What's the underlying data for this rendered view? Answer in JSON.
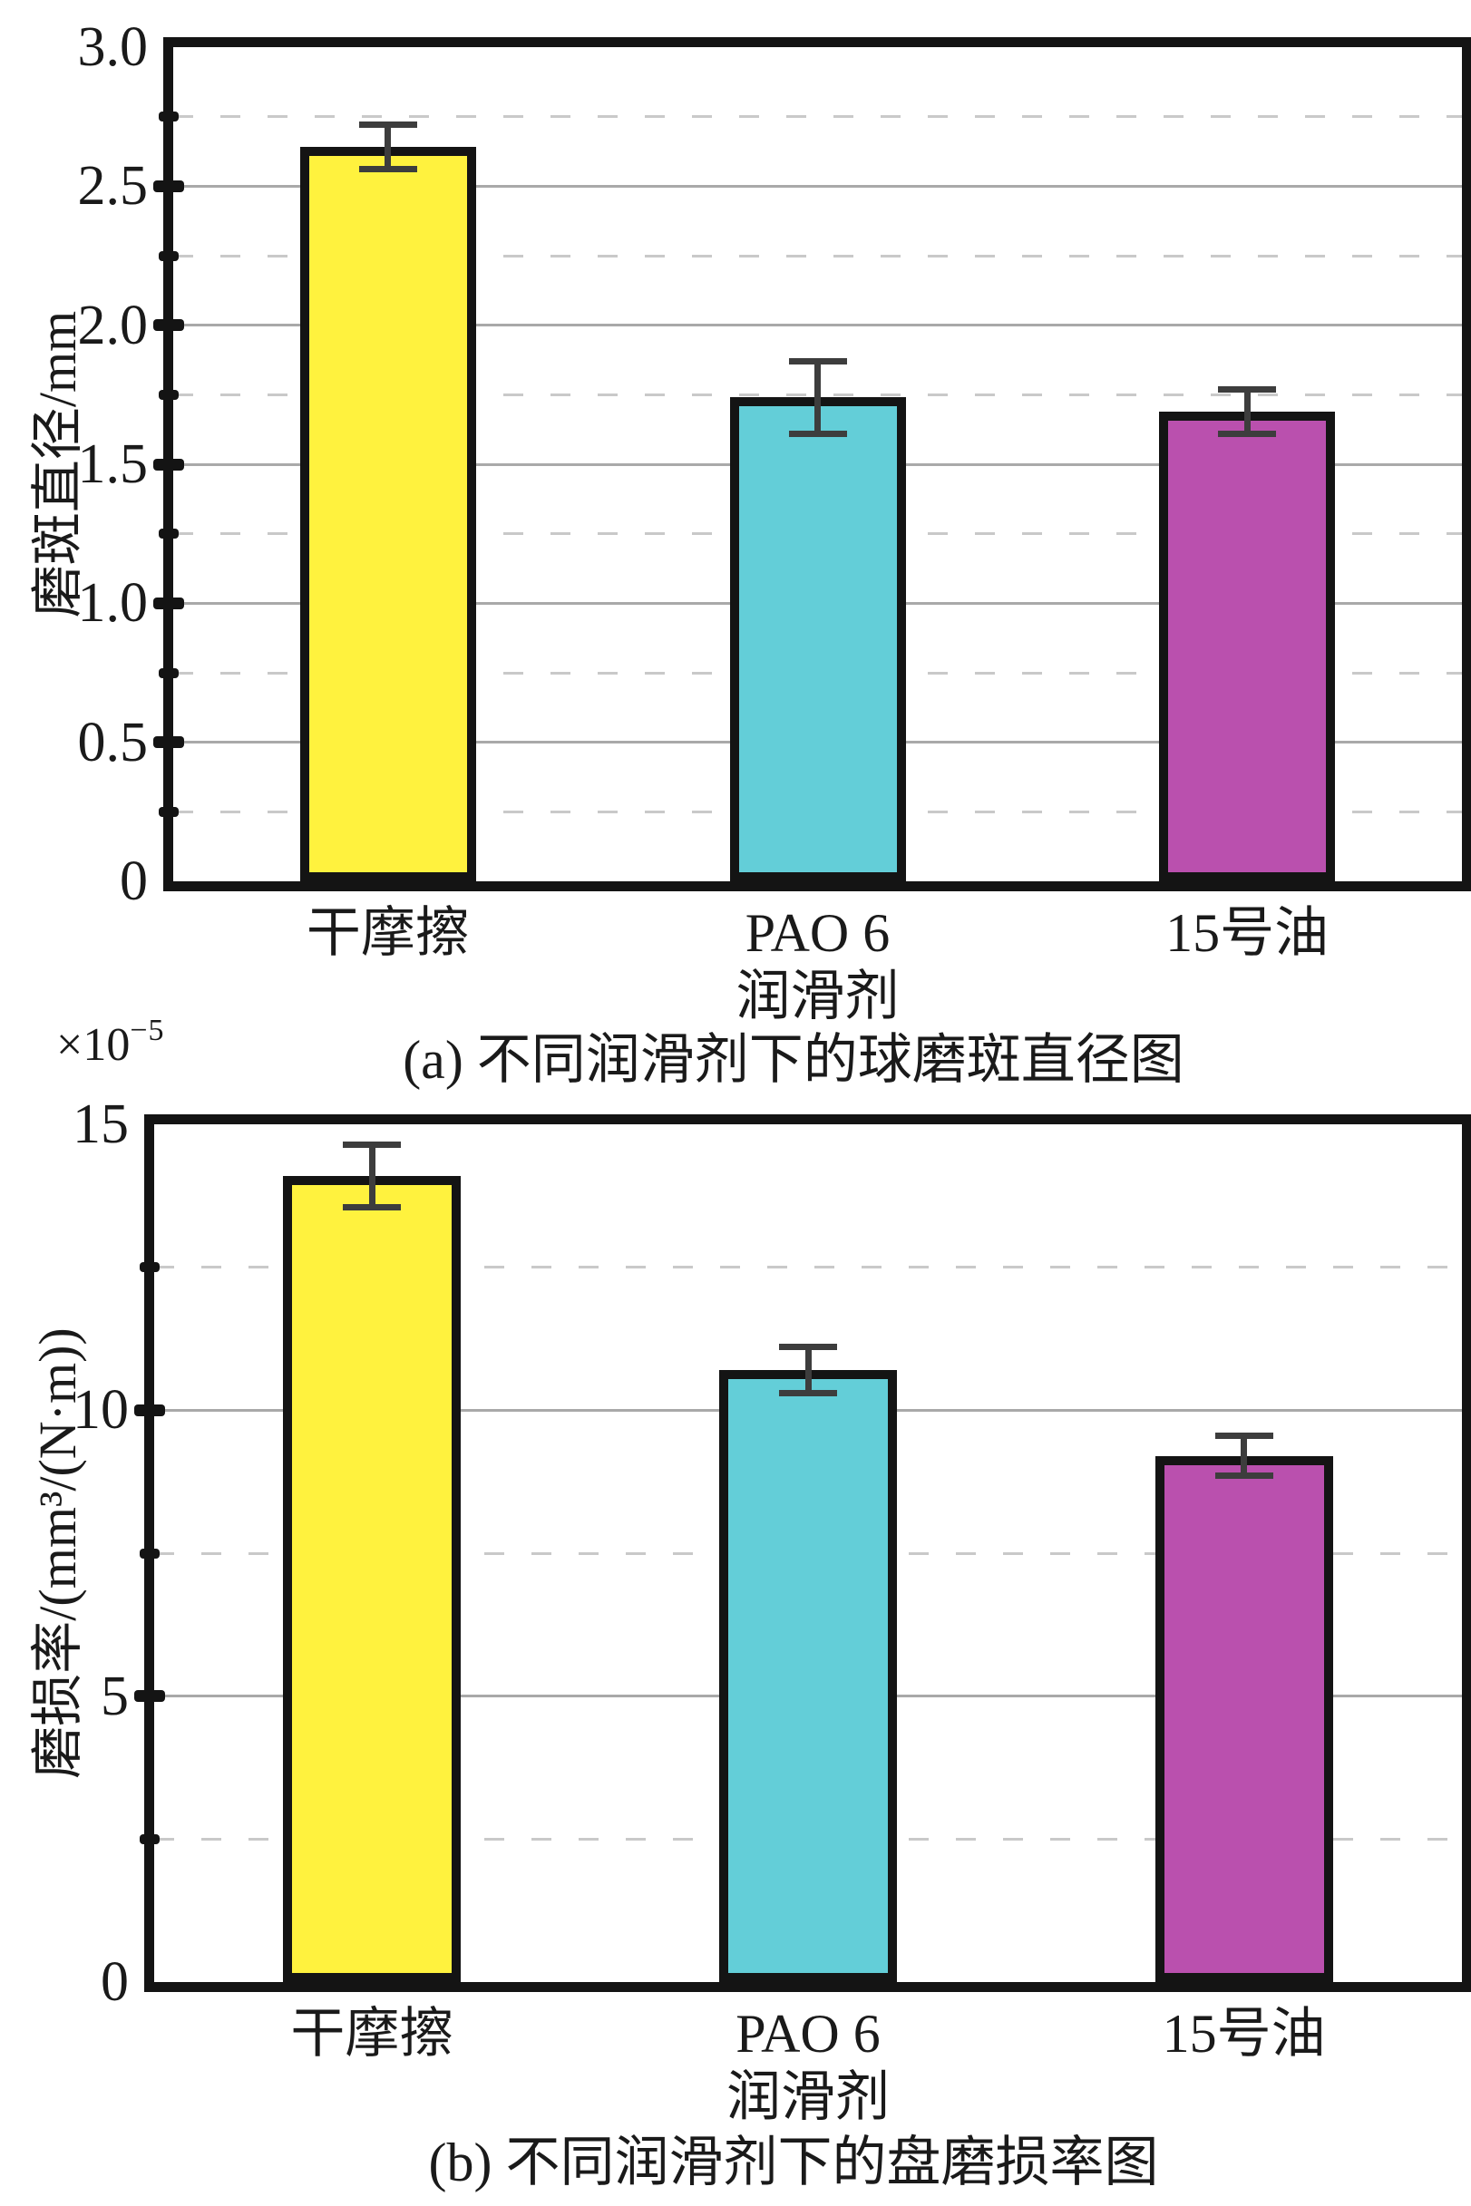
{
  "figure": {
    "background": "#ffffff",
    "scale_label": {
      "base": "×10",
      "exponent": "−5"
    }
  },
  "chart_data": [
    {
      "id": "a",
      "type": "bar",
      "caption": "(a) 不同润滑剂下的球磨斑直径图",
      "ylabel": "磨斑直径/mm",
      "xlabel": "润滑剂",
      "categories": [
        "干摩擦",
        "PAO 6",
        "15号油"
      ],
      "values": [
        2.64,
        1.74,
        1.69
      ],
      "errors": [
        0.08,
        0.13,
        0.08
      ],
      "ylim": [
        0,
        3.0
      ],
      "yticks_major": [
        0,
        0.5,
        1.0,
        1.5,
        2.0,
        2.5,
        3.0
      ],
      "ytick_labels": [
        "0",
        "0.5",
        "1.0",
        "1.5",
        "2.0",
        "2.5",
        "3.0"
      ],
      "yticks_minor": [
        0.25,
        0.75,
        1.25,
        1.75,
        2.25,
        2.75
      ],
      "grid": {
        "major": "solid",
        "minor": "dashed"
      },
      "legend": null
    },
    {
      "id": "b",
      "type": "bar",
      "caption": "(b) 不同润滑剂下的盘磨损率图",
      "ylabel": "磨损率/(mm³/(N·m))",
      "xlabel": "润滑剂",
      "y_scale_factor": "×10⁻⁵",
      "categories": [
        "干摩擦",
        "PAO 6",
        "15号油"
      ],
      "values": [
        14.1,
        10.7,
        9.2
      ],
      "errors": [
        0.55,
        0.4,
        0.35
      ],
      "ylim": [
        0,
        15
      ],
      "yticks_major": [
        0,
        5,
        10,
        15
      ],
      "ytick_labels": [
        "0",
        "5",
        "10",
        "15"
      ],
      "yticks_minor": [
        2.5,
        7.5,
        12.5
      ],
      "grid": {
        "major": "solid",
        "minor": "dashed"
      },
      "legend": null
    }
  ],
  "colors": {
    "bar_fills": [
      "#FFF23E",
      "#63CED8",
      "#BA50AE"
    ],
    "bar_edge": "#141414",
    "frame": "#141414",
    "grid_major": "#a9a9a9",
    "grid_minor": "#c9c9c9",
    "error_bar": "#3d3d3d",
    "text": "#1a1a1a",
    "background": "#ffffff"
  }
}
